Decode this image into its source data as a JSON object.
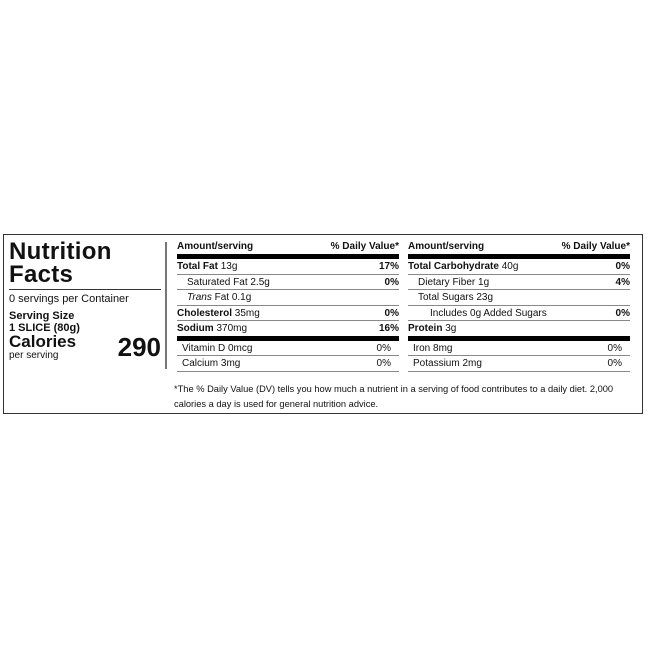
{
  "title": "Nutrition Facts",
  "servings": "0 servings per Container",
  "serving_size_label": "Serving Size",
  "serving_size": "1 SLICE (80g)",
  "calories_label": "Calories",
  "per_serving": "per serving",
  "calories": "290",
  "header": {
    "amount": "Amount/serving",
    "dv": "% Daily Value*"
  },
  "left_rows": [
    {
      "bold": "Total Fat",
      "rest": " 13g",
      "dv": "17%",
      "dv_bold": true,
      "indent": 0
    },
    {
      "bold": "",
      "rest": "Saturated Fat 2.5g",
      "dv": "0%",
      "dv_bold": true,
      "indent": 1
    },
    {
      "italic": "Trans",
      "rest": " Fat 0.1g",
      "dv": "",
      "indent": 1
    },
    {
      "bold": "Cholesterol",
      "rest": " 35mg",
      "dv": "0%",
      "dv_bold": true,
      "indent": 0
    },
    {
      "bold": "Sodium",
      "rest": " 370mg",
      "dv": "16%",
      "dv_bold": true,
      "indent": 0,
      "thick": true
    },
    {
      "bold": "",
      "rest": "Vitamin D 0mcg",
      "dv": "0%",
      "vit": true
    },
    {
      "bold": "",
      "rest": "Calcium 3mg",
      "dv": "0%",
      "vit": true
    }
  ],
  "right_rows": [
    {
      "bold": "Total Carbohydrate",
      "rest": " 40g",
      "dv": "0%",
      "dv_bold": true,
      "indent": 0
    },
    {
      "bold": "",
      "rest": "Dietary Fiber 1g",
      "dv": "4%",
      "dv_bold": true,
      "indent": 1
    },
    {
      "bold": "",
      "rest": "Total Sugars 23g",
      "dv": "",
      "indent": 1
    },
    {
      "bold": "",
      "rest": "Includes 0g Added Sugars",
      "dv": "0%",
      "dv_bold": true,
      "indent": 2
    },
    {
      "bold": "Protein",
      "rest": " 3g",
      "dv": "",
      "indent": 0,
      "thick": true
    },
    {
      "bold": "",
      "rest": "Iron 8mg",
      "dv": "0%",
      "vit": true
    },
    {
      "bold": "",
      "rest": "Potassium 2mg",
      "dv": "0%",
      "vit": true
    }
  ],
  "footnote": "*The % Daily Value (DV) tells you how much a nutrient in a serving of food contributes to a daily diet. 2,000 calories a day is used for general nutrition advice."
}
